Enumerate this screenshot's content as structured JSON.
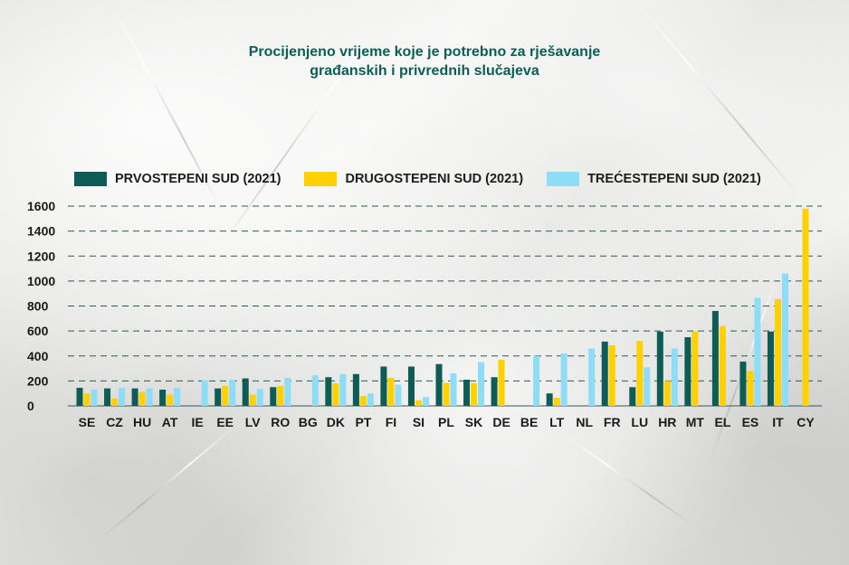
{
  "title_line1": "Procijenjeno vrijeme koje je potrebno za rješavanje",
  "title_line2": "građanskih i privrednih slučajeva",
  "colors": {
    "first": "#0d5c55",
    "second": "#ffd100",
    "third": "#8ddcf8",
    "axis_text": "#1a1a1a",
    "title": "#0b5e57"
  },
  "legend": [
    {
      "label": "PRVOSTEPENI SUD (2021)",
      "color": "#0d5c55"
    },
    {
      "label": "DRUGOSTEPENI SUD (2021)",
      "color": "#ffd100"
    },
    {
      "label": "TREĆESTEPENI SUD (2021)",
      "color": "#8ddcf8"
    }
  ],
  "chart_data": {
    "type": "bar",
    "ylim": [
      0,
      1600
    ],
    "yticks": [
      0,
      200,
      400,
      600,
      800,
      1000,
      1200,
      1400,
      1600
    ],
    "grid": true,
    "legend_position": "top",
    "categories": [
      "SE",
      "CZ",
      "HU",
      "AT",
      "IE",
      "EE",
      "LV",
      "RO",
      "BG",
      "DK",
      "PT",
      "FI",
      "SI",
      "PL",
      "SK",
      "DE",
      "BE",
      "LT",
      "NL",
      "FR",
      "LU",
      "HR",
      "MT",
      "EL",
      "ES",
      "IT",
      "CY"
    ],
    "series": [
      {
        "name": "PRVOSTEPENI SUD (2021)",
        "color": "#0d5c55",
        "values": [
          145,
          140,
          140,
          130,
          null,
          140,
          220,
          150,
          null,
          230,
          255,
          315,
          315,
          335,
          210,
          230,
          null,
          100,
          null,
          515,
          150,
          595,
          550,
          760,
          355,
          595,
          null
        ]
      },
      {
        "name": "DRUGOSTEPENI SUD (2021)",
        "color": "#ffd100",
        "values": [
          100,
          60,
          110,
          90,
          null,
          160,
          90,
          160,
          null,
          180,
          80,
          225,
          45,
          185,
          185,
          370,
          null,
          65,
          null,
          485,
          520,
          200,
          595,
          640,
          280,
          855,
          1580
        ]
      },
      {
        "name": "TREĆESTEPENI SUD (2021)",
        "color": "#8ddcf8",
        "values": [
          130,
          145,
          140,
          145,
          205,
          210,
          135,
          225,
          245,
          255,
          100,
          170,
          70,
          260,
          350,
          null,
          400,
          420,
          460,
          null,
          310,
          460,
          null,
          null,
          865,
          1060,
          null
        ]
      }
    ]
  }
}
